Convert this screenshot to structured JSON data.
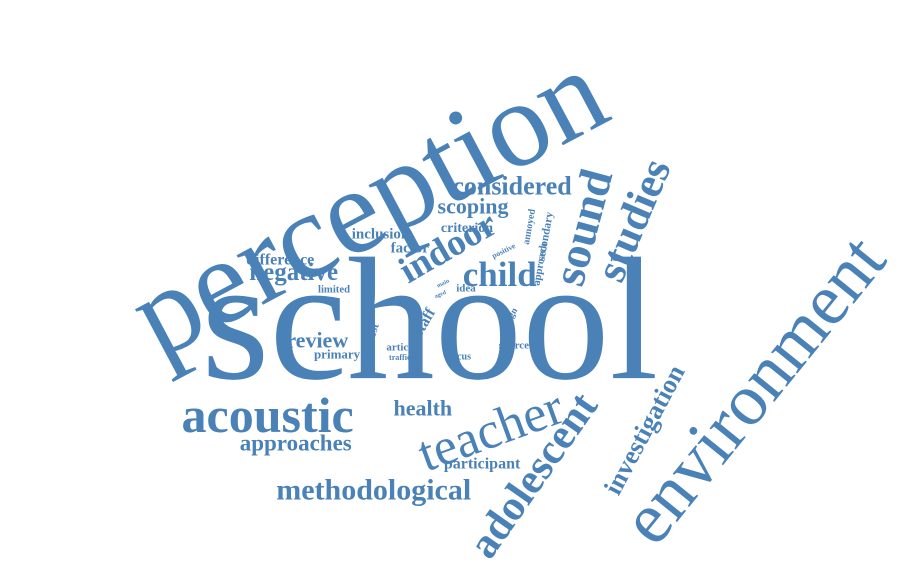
{
  "color": "#4a82b8",
  "words": [
    {
      "text": "perception"
    },
    {
      "text": "school"
    },
    {
      "text": "environment"
    },
    {
      "text": "teacher"
    },
    {
      "text": "adolescent"
    },
    {
      "text": "sound"
    },
    {
      "text": "studies"
    },
    {
      "text": "acoustic"
    },
    {
      "text": "indoor"
    },
    {
      "text": "child"
    },
    {
      "text": "considered"
    },
    {
      "text": "methodological"
    },
    {
      "text": "negative"
    },
    {
      "text": "scoping"
    },
    {
      "text": "approaches"
    },
    {
      "text": "review"
    },
    {
      "text": "health"
    },
    {
      "text": "investigation"
    },
    {
      "text": "difference"
    },
    {
      "text": "inclusion"
    },
    {
      "text": "factor"
    },
    {
      "text": "criterion"
    },
    {
      "text": "participant"
    },
    {
      "text": "primary"
    },
    {
      "text": "limited"
    },
    {
      "text": "staff"
    },
    {
      "text": "most"
    },
    {
      "text": "design"
    },
    {
      "text": "source"
    },
    {
      "text": "article"
    },
    {
      "text": "traffic"
    },
    {
      "text": "focus"
    },
    {
      "text": "main"
    },
    {
      "text": "aged"
    },
    {
      "text": "idea"
    },
    {
      "text": "positive"
    },
    {
      "text": "annoyed"
    },
    {
      "text": "secondary"
    },
    {
      "text": "approach"
    }
  ]
}
